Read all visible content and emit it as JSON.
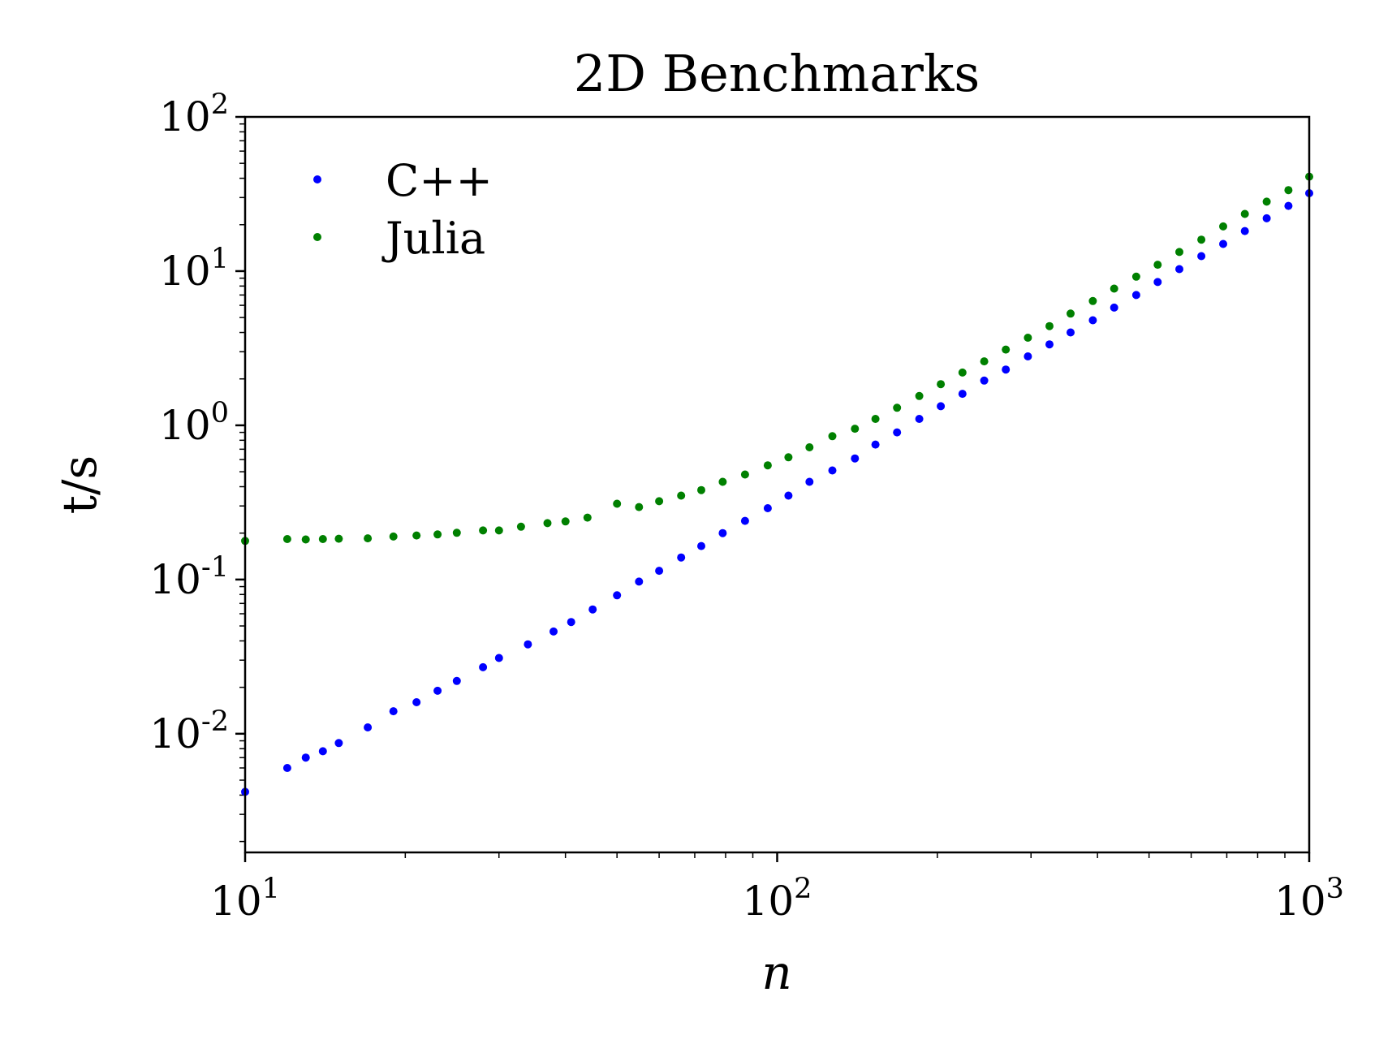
{
  "chart_data": {
    "type": "scatter",
    "title": "2D Benchmarks",
    "xlabel": "n",
    "ylabel": "t/s",
    "xscale": "log",
    "yscale": "log",
    "xlim": [
      10,
      1000
    ],
    "ylim": [
      0.0017,
      100
    ],
    "grid": false,
    "legend_position": "top-left",
    "x_ticks": [
      {
        "base": "10",
        "exp": "1",
        "value": 10
      },
      {
        "base": "10",
        "exp": "2",
        "value": 100
      },
      {
        "base": "10",
        "exp": "3",
        "value": 1000
      }
    ],
    "y_ticks": [
      {
        "base": "10",
        "exp": "-2",
        "value": 0.01
      },
      {
        "base": "10",
        "exp": "-1",
        "value": 0.1
      },
      {
        "base": "10",
        "exp": "0",
        "value": 1
      },
      {
        "base": "10",
        "exp": "1",
        "value": 10
      },
      {
        "base": "10",
        "exp": "2",
        "value": 100
      }
    ],
    "series": [
      {
        "name": "C++",
        "color": "#0000ff",
        "points": [
          [
            10,
            0.0042
          ],
          [
            12,
            0.006
          ],
          [
            13,
            0.007
          ],
          [
            14,
            0.0077
          ],
          [
            15,
            0.0087
          ],
          [
            17,
            0.011
          ],
          [
            19,
            0.014
          ],
          [
            21,
            0.016
          ],
          [
            23,
            0.019
          ],
          [
            25,
            0.022
          ],
          [
            28,
            0.027
          ],
          [
            30,
            0.031
          ],
          [
            34,
            0.038
          ],
          [
            38,
            0.046
          ],
          [
            41,
            0.053
          ],
          [
            45,
            0.064
          ],
          [
            50,
            0.079
          ],
          [
            55,
            0.097
          ],
          [
            60,
            0.114
          ],
          [
            66,
            0.139
          ],
          [
            72,
            0.165
          ],
          [
            79,
            0.2
          ],
          [
            87,
            0.24
          ],
          [
            96,
            0.29
          ],
          [
            105,
            0.35
          ],
          [
            115,
            0.43
          ],
          [
            127,
            0.51
          ],
          [
            140,
            0.61
          ],
          [
            153,
            0.75
          ],
          [
            168,
            0.9
          ],
          [
            185,
            1.1
          ],
          [
            203,
            1.33
          ],
          [
            223,
            1.6
          ],
          [
            245,
            1.95
          ],
          [
            269,
            2.3
          ],
          [
            296,
            2.8
          ],
          [
            325,
            3.35
          ],
          [
            356,
            4.0
          ],
          [
            392,
            4.8
          ],
          [
            430,
            5.8
          ],
          [
            473,
            7.0
          ],
          [
            519,
            8.5
          ],
          [
            570,
            10.3
          ],
          [
            627,
            12.5
          ],
          [
            689,
            15.0
          ],
          [
            757,
            18.2
          ],
          [
            832,
            22.0
          ],
          [
            914,
            26.5
          ],
          [
            1000,
            32.0
          ]
        ]
      },
      {
        "name": "Julia",
        "color": "#008000",
        "points": [
          [
            10,
            0.178
          ],
          [
            12,
            0.183
          ],
          [
            13,
            0.182
          ],
          [
            14,
            0.183
          ],
          [
            15,
            0.184
          ],
          [
            17,
            0.185
          ],
          [
            19,
            0.19
          ],
          [
            21,
            0.193
          ],
          [
            23,
            0.196
          ],
          [
            25,
            0.201
          ],
          [
            28,
            0.208
          ],
          [
            30,
            0.208
          ],
          [
            33,
            0.22
          ],
          [
            37,
            0.232
          ],
          [
            40,
            0.238
          ],
          [
            44,
            0.252
          ],
          [
            50,
            0.31
          ],
          [
            55,
            0.295
          ],
          [
            60,
            0.322
          ],
          [
            66,
            0.35
          ],
          [
            72,
            0.38
          ],
          [
            79,
            0.43
          ],
          [
            87,
            0.48
          ],
          [
            96,
            0.55
          ],
          [
            105,
            0.62
          ],
          [
            115,
            0.72
          ],
          [
            127,
            0.85
          ],
          [
            140,
            0.95
          ],
          [
            153,
            1.1
          ],
          [
            168,
            1.3
          ],
          [
            185,
            1.55
          ],
          [
            203,
            1.85
          ],
          [
            223,
            2.2
          ],
          [
            245,
            2.6
          ],
          [
            269,
            3.1
          ],
          [
            296,
            3.7
          ],
          [
            325,
            4.4
          ],
          [
            356,
            5.3
          ],
          [
            392,
            6.4
          ],
          [
            430,
            7.7
          ],
          [
            473,
            9.2
          ],
          [
            519,
            11.0
          ],
          [
            570,
            13.3
          ],
          [
            627,
            16.0
          ],
          [
            689,
            19.5
          ],
          [
            757,
            23.5
          ],
          [
            832,
            28.2
          ],
          [
            914,
            33.5
          ],
          [
            1000,
            41.0
          ]
        ]
      }
    ]
  }
}
